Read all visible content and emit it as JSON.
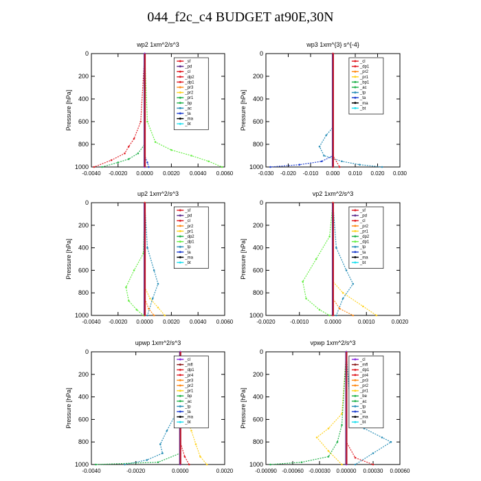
{
  "page_title": "044_f2c_c4  BUDGET at90E,30N",
  "colors": {
    "sf": "#e01d24",
    "pd": "#5a2a8c",
    "cl": "#e01d24",
    "dp": "#e01d24",
    "orange": "#ff8c1a",
    "yellow": "#ffd21f",
    "green": "#22b24c",
    "lightgreen": "#66ee44",
    "teal": "#2a8fb8",
    "blue": "#1f3fcf",
    "black": "#000000",
    "cyan": "#22e0f0",
    "purple": "#8a2be2",
    "darkred": "#8b1a1a"
  },
  "chart_data": [
    {
      "type": "line",
      "title": "wp2   1xm^2/s^3",
      "ylabel": "Pressure  [hPa]",
      "xlim": [
        -0.004,
        0.006
      ],
      "ylim": [
        1000,
        0
      ],
      "xticks": [
        "-0.0040",
        "-0.0020",
        "0.0000",
        "0.0020",
        "0.0040",
        "0.0060"
      ],
      "xtick_values": [
        -0.004,
        -0.002,
        0,
        0.002,
        0.004,
        0.006
      ],
      "yticks": [
        "0",
        "200",
        "400",
        "600",
        "800",
        "1000"
      ],
      "legend": [
        "_sf",
        "_pd",
        "_cl",
        "_dp2",
        "_dp1",
        "_pr3",
        "_pr2",
        "_pr1",
        "_bp",
        "_ac",
        "_ta",
        "_ma",
        "_bt"
      ],
      "legend_colors": [
        "sf",
        "pd",
        "cl",
        "dp",
        "dp",
        "orange",
        "yellow",
        "green",
        "green",
        "teal",
        "blue",
        "black",
        "cyan"
      ],
      "series": [
        {
          "color": "lightgreen",
          "x": [
            0,
            0.0002,
            0.0008,
            0.002,
            0.0035,
            0.0048,
            0.0058
          ],
          "y": [
            0,
            600,
            780,
            850,
            900,
            950,
            1000
          ]
        },
        {
          "color": "dp",
          "x": [
            0,
            -0.0003,
            -0.0008,
            -0.0012,
            -0.0015,
            -0.0025,
            -0.0038
          ],
          "y": [
            0,
            600,
            750,
            820,
            880,
            940,
            1000
          ]
        },
        {
          "color": "green",
          "x": [
            0,
            0,
            -0.0005,
            -0.0012,
            -0.002,
            -0.0032
          ],
          "y": [
            0,
            800,
            880,
            930,
            960,
            1000
          ]
        },
        {
          "color": "blue",
          "x": [
            0,
            0,
            0.0002,
            0.0003
          ],
          "y": [
            0,
            900,
            960,
            1000
          ]
        },
        {
          "color": "purple",
          "x": [
            0,
            0,
            0
          ],
          "y": [
            0,
            500,
            1000
          ]
        }
      ]
    },
    {
      "type": "line",
      "title": "wp3   1xm^{3} s^{-4}",
      "ylabel": "Pressure  [hPa]",
      "xlim": [
        -0.03,
        0.03
      ],
      "ylim": [
        1000,
        0
      ],
      "xticks": [
        "-0.030",
        "-0.020",
        "-0.010",
        "0.000",
        "0.010",
        "0.020",
        "0.030"
      ],
      "xtick_values": [
        -0.03,
        -0.02,
        -0.01,
        0,
        0.01,
        0.02,
        0.03
      ],
      "yticks": [
        "0",
        "200",
        "400",
        "600",
        "800",
        "1000"
      ],
      "legend": [
        "_cl",
        "_dp1",
        "_pr2",
        "_pr1",
        "_bp1",
        "_ac",
        "_tp",
        "_ta",
        "_ma",
        "_bt"
      ],
      "legend_colors": [
        "cl",
        "dp",
        "orange",
        "yellow",
        "green",
        "green",
        "teal",
        "blue",
        "black",
        "cyan"
      ],
      "series": [
        {
          "color": "teal",
          "x": [
            0,
            0,
            -0.003,
            -0.006,
            -0.004,
            0.004,
            0.012,
            0.022
          ],
          "y": [
            0,
            650,
            720,
            820,
            900,
            950,
            980,
            1000
          ]
        },
        {
          "color": "blue",
          "x": [
            0,
            0,
            -0.005,
            -0.015,
            -0.028
          ],
          "y": [
            0,
            900,
            950,
            980,
            1000
          ]
        },
        {
          "color": "dp",
          "x": [
            0,
            0,
            0.003
          ],
          "y": [
            0,
            900,
            1000
          ]
        },
        {
          "color": "dp",
          "x": [
            0,
            0
          ],
          "y": [
            0,
            1000
          ]
        }
      ]
    },
    {
      "type": "line",
      "title": "up2   1xm^2/s^3",
      "ylabel": "Pressure  [hPa]",
      "xlim": [
        -0.004,
        0.006
      ],
      "ylim": [
        1000,
        0
      ],
      "xticks": [
        "-0.0040",
        "-0.0020",
        "0.0000",
        "0.0020",
        "0.0040",
        "0.0060"
      ],
      "xtick_values": [
        -0.004,
        -0.002,
        0,
        0.002,
        0.004,
        0.006
      ],
      "yticks": [
        "0",
        "200",
        "400",
        "600",
        "800",
        "1000"
      ],
      "legend": [
        "_sf",
        "_pd",
        "_cl",
        "_pr2",
        "_pr1",
        "_dp2",
        "_dp1",
        "_tp",
        "_ta",
        "_ma",
        "_bt"
      ],
      "legend_colors": [
        "sf",
        "pd",
        "cl",
        "orange",
        "yellow",
        "green",
        "lightgreen",
        "teal",
        "blue",
        "black",
        "cyan"
      ],
      "series": [
        {
          "color": "lightgreen",
          "x": [
            0,
            -0.0001,
            -0.0008,
            -0.0014,
            -0.0012,
            -0.0006,
            -0.0001
          ],
          "y": [
            0,
            450,
            600,
            750,
            870,
            950,
            1000
          ]
        },
        {
          "color": "teal",
          "x": [
            0,
            0.0002,
            0.0007,
            0.001,
            0.0006,
            0.0002
          ],
          "y": [
            0,
            400,
            600,
            720,
            850,
            1000
          ]
        },
        {
          "color": "yellow",
          "x": [
            0,
            0,
            0.0004,
            0.001,
            0.0015
          ],
          "y": [
            0,
            750,
            850,
            930,
            1000
          ]
        },
        {
          "color": "orange",
          "x": [
            0,
            0,
            0.0003,
            0.0007
          ],
          "y": [
            0,
            850,
            940,
            1000
          ]
        },
        {
          "color": "dp",
          "x": [
            0,
            0
          ],
          "y": [
            0,
            1000
          ]
        }
      ]
    },
    {
      "type": "line",
      "title": "vp2   1xm^2/s^3",
      "ylabel": "Pressure  [hPa]",
      "xlim": [
        -0.002,
        0.002
      ],
      "ylim": [
        1000,
        0
      ],
      "xticks": [
        "-0.0020",
        "-0.0010",
        "0.0000",
        "0.0010",
        "0.0020"
      ],
      "xtick_values": [
        -0.002,
        -0.001,
        0,
        0.001,
        0.002
      ],
      "yticks": [
        "0",
        "200",
        "400",
        "600",
        "800",
        "1000"
      ],
      "legend": [
        "_sf",
        "_pd",
        "_cl",
        "_pr2",
        "_pr1",
        "_dp2",
        "_dp1",
        "_tp",
        "_ta",
        "_ma",
        "_bt"
      ],
      "legend_colors": [
        "sf",
        "pd",
        "cl",
        "orange",
        "yellow",
        "green",
        "lightgreen",
        "teal",
        "blue",
        "black",
        "cyan"
      ],
      "series": [
        {
          "color": "lightgreen",
          "x": [
            0,
            -0.0001,
            -0.0005,
            -0.0009,
            -0.0008,
            -0.0004,
            -0.0001
          ],
          "y": [
            0,
            300,
            500,
            700,
            850,
            950,
            1000
          ]
        },
        {
          "color": "teal",
          "x": [
            0,
            0.0001,
            0.0004,
            0.0006,
            0.0003,
            0.0001
          ],
          "y": [
            0,
            400,
            600,
            720,
            850,
            1000
          ]
        },
        {
          "color": "yellow",
          "x": [
            0,
            0,
            0.0003,
            0.0009,
            0.0013
          ],
          "y": [
            0,
            700,
            800,
            920,
            1000
          ]
        },
        {
          "color": "orange",
          "x": [
            0,
            0,
            0.0002,
            0.0006
          ],
          "y": [
            0,
            850,
            940,
            1000
          ]
        },
        {
          "color": "dp",
          "x": [
            0,
            0
          ],
          "y": [
            0,
            1000
          ]
        }
      ]
    },
    {
      "type": "line",
      "title": "upwp   1xm^2/s^3",
      "ylabel": "Pressure  [hPa]",
      "xlim": [
        -0.004,
        0.002
      ],
      "ylim": [
        1000,
        0
      ],
      "xticks": [
        "-0.0040",
        "-0.0020",
        "0.0000",
        "0.0020"
      ],
      "xtick_values": [
        -0.004,
        -0.002,
        0,
        0.002
      ],
      "yticks": [
        "0",
        "200",
        "400",
        "600",
        "800",
        "1000"
      ],
      "legend": [
        "_cl",
        "_mfl",
        "_dp1",
        "_pr4",
        "_pr3",
        "_pr2",
        "_pr1",
        "_bp",
        "_ac",
        "_tp",
        "_ta",
        "_ma",
        "_bt"
      ],
      "legend_colors": [
        "purple",
        "darkred",
        "dp",
        "dp",
        "orange",
        "orange",
        "yellow",
        "green",
        "green",
        "teal",
        "blue",
        "black",
        "cyan"
      ],
      "series": [
        {
          "color": "teal",
          "x": [
            0,
            -0.0002,
            -0.0006,
            -0.0009,
            -0.0008,
            -0.0015,
            -0.0025
          ],
          "y": [
            0,
            550,
            700,
            820,
            900,
            960,
            1000
          ]
        },
        {
          "color": "yellow",
          "x": [
            0,
            0.0002,
            0.0005,
            0.0007,
            0.0009,
            0.0012
          ],
          "y": [
            0,
            550,
            700,
            820,
            930,
            1000
          ]
        },
        {
          "color": "green",
          "x": [
            0,
            0,
            -0.001,
            -0.0038
          ],
          "y": [
            0,
            900,
            980,
            1000
          ]
        },
        {
          "color": "dp",
          "x": [
            0,
            0,
            0.0002,
            0.0004
          ],
          "y": [
            0,
            800,
            930,
            1000
          ]
        },
        {
          "color": "purple",
          "x": [
            0,
            0
          ],
          "y": [
            0,
            1000
          ]
        }
      ]
    },
    {
      "type": "line",
      "title": "vpwp   1xm^2/s^3",
      "ylabel": "Pressure  [hPa]",
      "xlim": [
        -0.0009,
        0.0006
      ],
      "ylim": [
        1000,
        0
      ],
      "xticks": [
        "-0.00090",
        "-0.00060",
        "-0.00030",
        "0.00000",
        "0.00030",
        "0.00060"
      ],
      "xtick_values": [
        -0.0009,
        -0.0006,
        -0.0003,
        0,
        0.0003,
        0.0006
      ],
      "yticks": [
        "0",
        "200",
        "400",
        "600",
        "800",
        "1000"
      ],
      "legend": [
        "_cl",
        "_mfl",
        "_dp1",
        "_pr4",
        "_pr3",
        "_pr2",
        "_pr1",
        "_be",
        "_ac",
        "_tp",
        "_ta",
        "_ma",
        "_bt"
      ],
      "legend_colors": [
        "purple",
        "darkred",
        "dp",
        "dp",
        "orange",
        "orange",
        "yellow",
        "green",
        "green",
        "teal",
        "blue",
        "black",
        "cyan"
      ],
      "series": [
        {
          "color": "teal",
          "x": [
            0,
            5e-05,
            0.0002,
            0.0004,
            0.0005,
            0.0003,
            0.0001
          ],
          "y": [
            0,
            550,
            680,
            760,
            800,
            900,
            1000
          ]
        },
        {
          "color": "yellow",
          "x": [
            0,
            -5e-05,
            -0.0002,
            -0.00033,
            -0.0002,
            -5e-05
          ],
          "y": [
            0,
            550,
            680,
            760,
            880,
            1000
          ]
        },
        {
          "color": "green",
          "x": [
            0,
            -5e-05,
            -0.0001,
            -0.0002,
            -0.0005,
            -0.00085
          ],
          "y": [
            0,
            650,
            800,
            930,
            980,
            1000
          ]
        },
        {
          "color": "dp",
          "x": [
            0,
            0,
            0.0001,
            0.0003
          ],
          "y": [
            0,
            800,
            940,
            1000
          ]
        },
        {
          "color": "purple",
          "x": [
            0,
            0
          ],
          "y": [
            0,
            1000
          ]
        }
      ]
    }
  ]
}
